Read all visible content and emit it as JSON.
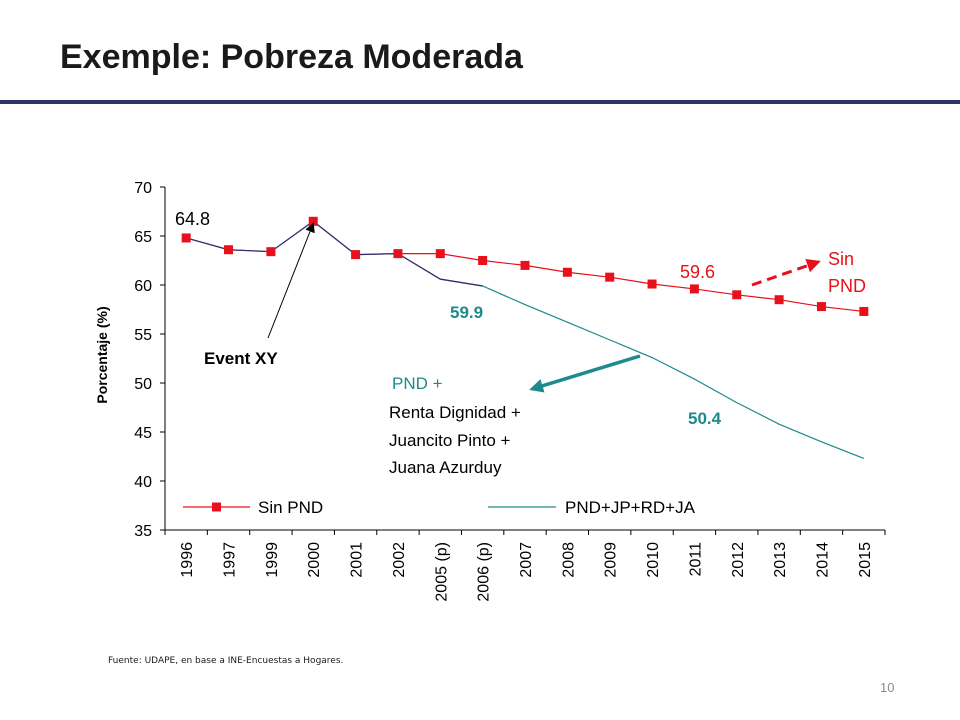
{
  "slide": {
    "title": "Exemple: Pobreza Moderada",
    "source": "Fuente: UDAPE, en base a INE-Encuestas a Hogares.",
    "page_number": "10"
  },
  "colors": {
    "rule": "#2c3566",
    "sin_pnd": "#e8101a",
    "pnd": "#1f8a8a",
    "axis": "#000000",
    "callout_teal": "#1f8a8a",
    "callout_red": "#e8101a"
  },
  "chart_data": {
    "type": "line",
    "title": "",
    "xlabel": "",
    "ylabel": "Porcentaje (%)",
    "ylim": [
      35,
      70
    ],
    "yticks": [
      70,
      65,
      60,
      55,
      50,
      45,
      40,
      35
    ],
    "grid": false,
    "categories": [
      "1996",
      "1997",
      "1999",
      "2000",
      "2001",
      "2002",
      "2005 (p)",
      "2006 (p)",
      "2007",
      "2008",
      "2009",
      "2010",
      "2011",
      "2012",
      "2013",
      "2014",
      "2015"
    ],
    "series": [
      {
        "name": "Sin PND",
        "marker": "square",
        "color": "#e8101a",
        "values": [
          64.8,
          63.6,
          63.4,
          66.5,
          63.1,
          63.2,
          63.2,
          62.5,
          62.0,
          61.3,
          60.8,
          60.1,
          59.6,
          59.0,
          58.5,
          57.8,
          57.3
        ]
      },
      {
        "name": "PND+JP+RD+JA",
        "marker": "none",
        "color": "#1f8a8a",
        "values": [
          64.8,
          63.6,
          63.4,
          66.5,
          63.1,
          63.2,
          60.6,
          59.9,
          58.0,
          56.2,
          54.4,
          52.6,
          50.4,
          48.0,
          45.8,
          44.0,
          42.3
        ]
      }
    ],
    "legend": {
      "placement": "bottom-inside",
      "items": [
        "Sin PND",
        "PND+JP+RD+JA"
      ]
    },
    "annotations": {
      "first_value": "64.8",
      "event": "Event XY",
      "sin_value": "59.6",
      "sin_label_line1": "Sin",
      "sin_label_line2": "PND",
      "pnd_value_mid": "59.9",
      "pnd_value_end": "50.4",
      "pnd_label_lines": [
        "PND +",
        "Renta Dignidad +",
        "Juancito Pinto +",
        "Juana Azurduy"
      ]
    }
  }
}
